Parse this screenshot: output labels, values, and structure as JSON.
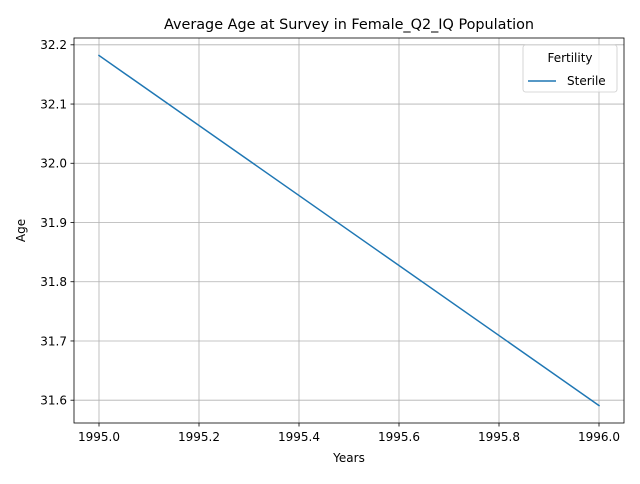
{
  "chart_data": {
    "type": "line",
    "title": "Average Age at Survey in Female_Q2_IQ Population",
    "xlabel": "Years",
    "ylabel": "Age",
    "xlim": [
      1994.95,
      1996.05
    ],
    "ylim": [
      31.5615,
      32.2115
    ],
    "x_ticks": [
      1995.0,
      1995.2,
      1995.4,
      1995.6,
      1995.8,
      1996.0
    ],
    "x_tick_labels": [
      "1995.0",
      "1995.2",
      "1995.4",
      "1995.6",
      "1995.8",
      "1996.0"
    ],
    "y_ticks": [
      31.6,
      31.7,
      31.8,
      31.9,
      32.0,
      32.1,
      32.2
    ],
    "y_tick_labels": [
      "31.6",
      "31.7",
      "31.8",
      "31.9",
      "32.0",
      "32.1",
      "32.2"
    ],
    "grid": true,
    "legend": {
      "title": "Fertility",
      "placement": "top-right"
    },
    "series": [
      {
        "name": "Sterile",
        "color": "#1f77b4",
        "x": [
          1995.0,
          1996.0
        ],
        "y": [
          32.182,
          31.591
        ]
      }
    ]
  }
}
